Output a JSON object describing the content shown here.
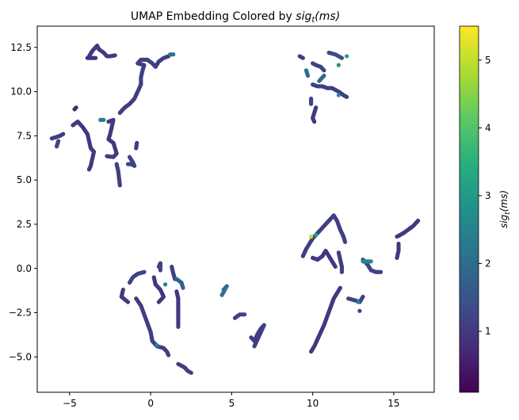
{
  "chart_data": {
    "type": "scatter",
    "title": "UMAP Embedding Colored by ",
    "title_math": "sig",
    "title_math_sub": "t",
    "title_math_rest": "(ms)",
    "xlabel": "",
    "ylabel": "",
    "xlim": [
      -7.0,
      17.5
    ],
    "ylim": [
      -7.0,
      13.7
    ],
    "xticks": [
      -5,
      0,
      5,
      10,
      15
    ],
    "yticks": [
      -5.0,
      -2.5,
      0.0,
      2.5,
      5.0,
      7.5,
      10.0,
      12.5
    ],
    "ytick_labels": [
      "−5.0",
      "−2.5",
      "0.0",
      "2.5",
      "5.0",
      "7.5",
      "10.0",
      "12.5"
    ],
    "xtick_labels": [
      "−5",
      "0",
      "5",
      "10",
      "15"
    ],
    "grid": false,
    "colormap": "viridis",
    "colorbar": {
      "label_math": "sig",
      "label_sub": "t",
      "label_rest": "(ms)",
      "range": [
        0.1,
        5.5
      ],
      "ticks": [
        1,
        2,
        3,
        4,
        5
      ],
      "tick_labels": [
        "1",
        "2",
        "3",
        "4",
        "5"
      ]
    },
    "strands": [
      {
        "c": 1.1,
        "pts": [
          [
            -6.1,
            7.35
          ],
          [
            -5.6,
            7.5
          ],
          [
            -5.4,
            7.6
          ]
        ]
      },
      {
        "c": 1.2,
        "pts": [
          [
            -5.8,
            6.9
          ],
          [
            -5.7,
            7.2
          ]
        ]
      },
      {
        "c": 1.0,
        "pts": [
          [
            -4.8,
            8.1
          ],
          [
            -4.5,
            8.3
          ],
          [
            -4.2,
            8.0
          ],
          [
            -3.9,
            7.6
          ],
          [
            -3.8,
            7.2
          ],
          [
            -3.7,
            6.8
          ],
          [
            -3.5,
            6.6
          ],
          [
            -3.6,
            6.2
          ],
          [
            -3.7,
            5.8
          ],
          [
            -3.8,
            5.6
          ]
        ]
      },
      {
        "c": 2.3,
        "pts": [
          [
            -3.1,
            8.4
          ],
          [
            -2.9,
            8.4
          ]
        ]
      },
      {
        "c": 1.0,
        "pts": [
          [
            -2.6,
            8.3
          ],
          [
            -2.3,
            8.4
          ],
          [
            -2.4,
            8.0
          ],
          [
            -2.5,
            7.6
          ],
          [
            -2.6,
            7.3
          ],
          [
            -2.3,
            7.1
          ],
          [
            -2.2,
            6.8
          ],
          [
            -2.1,
            6.5
          ],
          [
            -2.3,
            6.3
          ],
          [
            -2.7,
            6.35
          ]
        ]
      },
      {
        "c": 1.1,
        "pts": [
          [
            -2.1,
            5.9
          ],
          [
            -2.0,
            5.5
          ],
          [
            -1.95,
            5.1
          ],
          [
            -1.9,
            4.7
          ]
        ]
      },
      {
        "c": 0.7,
        "pts": [
          [
            -4.7,
            9.0
          ],
          [
            -4.6,
            9.1
          ]
        ]
      },
      {
        "c": 1.1,
        "pts": [
          [
            -1.9,
            8.8
          ],
          [
            -1.6,
            9.1
          ],
          [
            -1.3,
            9.3
          ],
          [
            -1.0,
            9.6
          ],
          [
            -0.8,
            10.0
          ],
          [
            -0.6,
            10.4
          ],
          [
            -0.6,
            10.8
          ],
          [
            -0.5,
            11.2
          ],
          [
            -0.4,
            11.5
          ],
          [
            -0.8,
            11.6
          ],
          [
            -0.6,
            11.8
          ],
          [
            -0.2,
            11.8
          ],
          [
            0.1,
            11.6
          ],
          [
            0.3,
            11.4
          ],
          [
            0.5,
            11.7
          ],
          [
            0.8,
            11.9
          ],
          [
            1.1,
            12.0
          ]
        ]
      },
      {
        "c": 2.2,
        "pts": [
          [
            1.2,
            12.1
          ],
          [
            1.4,
            12.1
          ]
        ]
      },
      {
        "c": 1.0,
        "pts": [
          [
            -3.8,
            12.0
          ],
          [
            -3.6,
            12.3
          ],
          [
            -3.3,
            12.6
          ],
          [
            -3.2,
            12.4
          ],
          [
            -2.9,
            12.2
          ],
          [
            -2.7,
            12.0
          ],
          [
            -2.5,
            12.0
          ],
          [
            -2.2,
            12.05
          ]
        ]
      },
      {
        "c": 0.8,
        "pts": [
          [
            -3.9,
            11.9
          ],
          [
            -3.4,
            11.9
          ]
        ]
      },
      {
        "c": 1.2,
        "pts": [
          [
            -1.3,
            6.3
          ],
          [
            -1.1,
            6.0
          ],
          [
            -1.0,
            5.8
          ],
          [
            -1.2,
            5.9
          ],
          [
            -1.4,
            5.9
          ]
        ]
      },
      {
        "c": 1.1,
        "pts": [
          [
            -0.9,
            6.8
          ],
          [
            -0.85,
            7.1
          ]
        ]
      },
      {
        "c": 1.0,
        "pts": [
          [
            9.2,
            12.0
          ],
          [
            9.4,
            11.9
          ]
        ]
      },
      {
        "c": 2.0,
        "pts": [
          [
            9.6,
            11.2
          ],
          [
            9.7,
            10.9
          ]
        ]
      },
      {
        "c": 1.2,
        "pts": [
          [
            10.0,
            11.6
          ],
          [
            10.2,
            11.5
          ],
          [
            10.5,
            11.4
          ],
          [
            10.7,
            11.2
          ]
        ]
      },
      {
        "c": 1.3,
        "pts": [
          [
            11.0,
            12.2
          ],
          [
            11.4,
            12.1
          ],
          [
            11.8,
            11.9
          ]
        ]
      },
      {
        "c": 3.0,
        "pts": [
          [
            12.1,
            12.0
          ]
        ]
      },
      {
        "c": 2.8,
        "pts": [
          [
            11.6,
            11.5
          ]
        ]
      },
      {
        "c": 1.1,
        "pts": [
          [
            10.0,
            10.4
          ],
          [
            10.3,
            10.3
          ],
          [
            10.6,
            10.3
          ],
          [
            10.9,
            10.2
          ],
          [
            11.2,
            10.2
          ],
          [
            11.6,
            10.0
          ],
          [
            11.9,
            9.8
          ],
          [
            12.1,
            9.7
          ]
        ]
      },
      {
        "c": 2.7,
        "pts": [
          [
            11.6,
            9.8
          ]
        ]
      },
      {
        "c": 1.2,
        "pts": [
          [
            9.9,
            9.6
          ],
          [
            9.9,
            9.3
          ]
        ]
      },
      {
        "c": 1.0,
        "pts": [
          [
            10.2,
            9.1
          ],
          [
            10.1,
            8.8
          ],
          [
            10.0,
            8.5
          ],
          [
            10.1,
            8.3
          ]
        ]
      },
      {
        "c": 2.0,
        "pts": [
          [
            10.4,
            10.6
          ],
          [
            10.7,
            10.9
          ]
        ]
      },
      {
        "c": 1.2,
        "pts": [
          [
            -1.3,
            -0.8
          ],
          [
            -1.1,
            -0.5
          ],
          [
            -0.8,
            -0.3
          ],
          [
            -0.4,
            -0.2
          ]
        ]
      },
      {
        "c": 1.0,
        "pts": [
          [
            -1.7,
            -1.2
          ],
          [
            -1.8,
            -1.6
          ],
          [
            -1.4,
            -1.9
          ]
        ]
      },
      {
        "c": 1.1,
        "pts": [
          [
            -0.9,
            -1.7
          ],
          [
            -0.6,
            -2.1
          ],
          [
            -0.4,
            -2.6
          ],
          [
            -0.2,
            -3.1
          ],
          [
            0.0,
            -3.6
          ],
          [
            0.1,
            -4.1
          ],
          [
            0.4,
            -4.4
          ],
          [
            0.8,
            -4.5
          ],
          [
            1.0,
            -4.7
          ],
          [
            1.1,
            -4.9
          ]
        ]
      },
      {
        "c": 2.6,
        "pts": [
          [
            0.4,
            -4.35
          ]
        ]
      },
      {
        "c": 1.2,
        "pts": [
          [
            0.5,
            0.1
          ],
          [
            0.6,
            0.3
          ],
          [
            0.6,
            -0.1
          ]
        ]
      },
      {
        "c": 1.0,
        "pts": [
          [
            0.2,
            -0.5
          ],
          [
            0.3,
            -0.9
          ],
          [
            0.6,
            -1.2
          ],
          [
            0.8,
            -1.6
          ],
          [
            0.5,
            -1.9
          ]
        ]
      },
      {
        "c": 2.4,
        "pts": [
          [
            0.9,
            -0.9
          ]
        ]
      },
      {
        "c": 1.1,
        "pts": [
          [
            1.3,
            0.1
          ],
          [
            1.4,
            -0.3
          ],
          [
            1.5,
            -0.6
          ]
        ]
      },
      {
        "c": 1.8,
        "pts": [
          [
            1.6,
            -0.6
          ],
          [
            1.9,
            -0.8
          ],
          [
            2.0,
            -1.1
          ]
        ]
      },
      {
        "c": 1.0,
        "pts": [
          [
            1.6,
            -1.3
          ],
          [
            1.7,
            -1.7
          ],
          [
            1.7,
            -2.1
          ],
          [
            1.7,
            -2.5
          ],
          [
            1.7,
            -2.9
          ],
          [
            1.7,
            -3.3
          ]
        ]
      },
      {
        "c": 1.1,
        "pts": [
          [
            1.7,
            -5.4
          ],
          [
            1.9,
            -5.5
          ],
          [
            2.1,
            -5.6
          ],
          [
            2.3,
            -5.8
          ],
          [
            2.5,
            -5.9
          ]
        ]
      },
      {
        "c": 2.1,
        "pts": [
          [
            4.5,
            -1.2
          ],
          [
            4.7,
            -1.0
          ],
          [
            4.4,
            -1.5
          ]
        ]
      },
      {
        "c": 1.2,
        "pts": [
          [
            5.2,
            -2.8
          ],
          [
            5.5,
            -2.6
          ],
          [
            5.8,
            -2.6
          ]
        ]
      },
      {
        "c": 1.1,
        "pts": [
          [
            6.2,
            -3.9
          ],
          [
            6.4,
            -4.1
          ],
          [
            6.6,
            -3.7
          ],
          [
            6.8,
            -3.4
          ],
          [
            7.0,
            -3.2
          ],
          [
            6.4,
            -4.4
          ]
        ]
      },
      {
        "c": 1.0,
        "pts": [
          [
            9.9,
            -4.7
          ],
          [
            10.1,
            -4.4
          ],
          [
            10.3,
            -4.0
          ],
          [
            10.5,
            -3.6
          ],
          [
            10.7,
            -3.2
          ],
          [
            10.9,
            -2.7
          ],
          [
            11.1,
            -2.2
          ],
          [
            11.3,
            -1.7
          ],
          [
            11.5,
            -1.4
          ],
          [
            11.7,
            -1.1
          ]
        ]
      },
      {
        "c": 1.2,
        "pts": [
          [
            12.2,
            -1.7
          ],
          [
            12.6,
            -1.8
          ],
          [
            12.9,
            -1.9
          ],
          [
            13.1,
            -1.6
          ]
        ]
      },
      {
        "c": 2.6,
        "pts": [
          [
            12.8,
            -1.9
          ]
        ]
      },
      {
        "c": 1.1,
        "pts": [
          [
            12.9,
            -2.4
          ]
        ]
      },
      {
        "c": 1.1,
        "pts": [
          [
            9.4,
            0.7
          ],
          [
            9.6,
            1.1
          ],
          [
            9.8,
            1.4
          ],
          [
            10.0,
            1.7
          ],
          [
            10.3,
            2.0
          ],
          [
            10.6,
            2.3
          ],
          [
            10.9,
            2.6
          ],
          [
            11.1,
            2.8
          ],
          [
            11.3,
            3.0
          ],
          [
            11.5,
            2.7
          ],
          [
            11.7,
            2.2
          ],
          [
            11.9,
            1.8
          ],
          [
            12.0,
            1.5
          ]
        ]
      },
      {
        "c": 5.0,
        "pts": [
          [
            9.9,
            1.8
          ]
        ]
      },
      {
        "c": 3.2,
        "pts": [
          [
            10.2,
            1.9
          ]
        ]
      },
      {
        "c": 1.0,
        "pts": [
          [
            10.0,
            0.6
          ],
          [
            10.3,
            0.5
          ],
          [
            10.6,
            0.7
          ],
          [
            10.8,
            1.0
          ],
          [
            11.0,
            0.7
          ],
          [
            11.2,
            0.4
          ],
          [
            11.4,
            0.1
          ]
        ]
      },
      {
        "c": 1.1,
        "pts": [
          [
            11.6,
            0.9
          ],
          [
            11.7,
            0.5
          ],
          [
            11.8,
            0.1
          ],
          [
            11.8,
            -0.2
          ]
        ]
      },
      {
        "c": 1.2,
        "pts": [
          [
            13.1,
            0.5
          ],
          [
            13.4,
            0.2
          ],
          [
            13.6,
            -0.1
          ],
          [
            13.9,
            -0.2
          ],
          [
            14.2,
            -0.2
          ]
        ]
      },
      {
        "c": 2.6,
        "pts": [
          [
            13.1,
            0.4
          ],
          [
            13.6,
            0.4
          ]
        ]
      },
      {
        "c": 1.0,
        "pts": [
          [
            15.2,
            1.8
          ],
          [
            15.4,
            1.9
          ],
          [
            15.6,
            2.0
          ],
          [
            15.9,
            2.2
          ],
          [
            16.2,
            2.4
          ],
          [
            16.5,
            2.7
          ]
        ]
      },
      {
        "c": 1.0,
        "pts": [
          [
            15.3,
            1.4
          ],
          [
            15.3,
            1.0
          ],
          [
            15.2,
            0.6
          ]
        ]
      }
    ]
  }
}
